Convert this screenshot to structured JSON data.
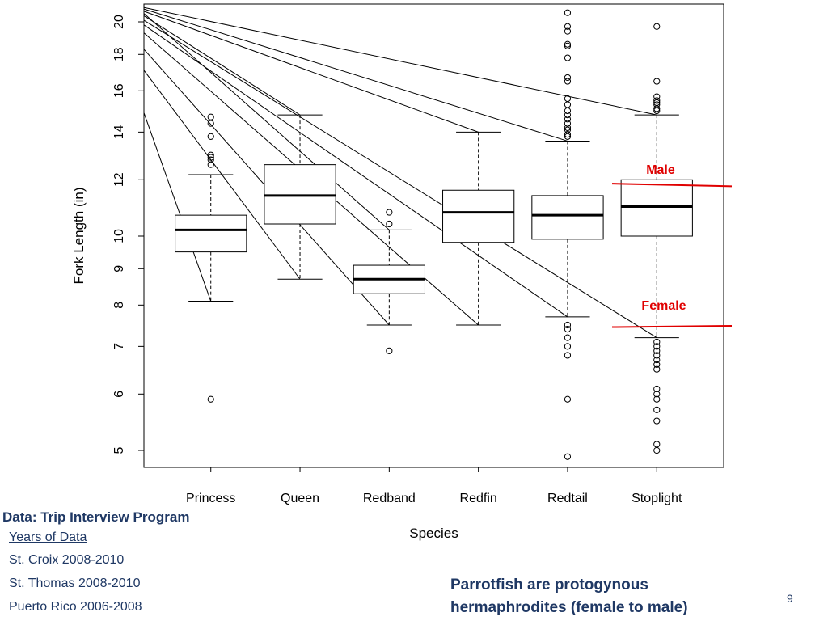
{
  "chart_data": {
    "type": "box",
    "xlabel": "Species",
    "ylabel": "Fork Length (in)",
    "y_scale": "log",
    "ylim": [
      4.6,
      20.6
    ],
    "y_ticks": [
      5,
      6,
      7,
      8,
      9,
      10,
      12,
      14,
      16,
      18,
      20
    ],
    "categories": [
      "Princess",
      "Queen",
      "Redband",
      "Redfin",
      "Redtail",
      "Stoplight"
    ],
    "boxes": [
      {
        "name": "Princess",
        "whisker_low": 8.1,
        "q1": 9.5,
        "median": 10.2,
        "q3": 10.7,
        "whisker_high": 12.2,
        "outliers": [
          5.9,
          12.6,
          12.8,
          12.9,
          13.0,
          13.8,
          14.4,
          14.7
        ]
      },
      {
        "name": "Queen",
        "whisker_low": 8.7,
        "q1": 10.4,
        "median": 11.4,
        "q3": 12.6,
        "whisker_high": 14.8,
        "outliers": []
      },
      {
        "name": "Redband",
        "whisker_low": 7.5,
        "q1": 8.3,
        "median": 8.7,
        "q3": 9.1,
        "whisker_high": 10.2,
        "outliers": [
          6.9,
          10.4,
          10.8
        ]
      },
      {
        "name": "Redfin",
        "whisker_low": 7.5,
        "q1": 9.8,
        "median": 10.8,
        "q3": 11.6,
        "whisker_high": 14.0,
        "outliers": []
      },
      {
        "name": "Redtail",
        "whisker_low": 7.7,
        "q1": 9.9,
        "median": 10.7,
        "q3": 11.4,
        "whisker_high": 13.6,
        "outliers": [
          4.9,
          5.9,
          6.8,
          7.0,
          7.2,
          7.4,
          7.5,
          13.8,
          13.9,
          14.1,
          14.2,
          14.4,
          14.6,
          14.8,
          15.0,
          15.3,
          15.6,
          16.5,
          16.7,
          17.8,
          18.5,
          18.6,
          19.4,
          19.7,
          20.6
        ]
      },
      {
        "name": "Stoplight",
        "whisker_low": 7.2,
        "q1": 10.0,
        "median": 11.0,
        "q3": 12.0,
        "whisker_high": 14.8,
        "outliers": [
          5.0,
          5.1,
          5.5,
          5.7,
          5.9,
          6.0,
          6.1,
          6.5,
          6.6,
          6.7,
          6.8,
          6.9,
          7.0,
          7.1,
          15.0,
          15.1,
          15.3,
          15.4,
          15.5,
          15.7,
          16.5,
          19.7
        ]
      }
    ],
    "annotations": [
      {
        "text": "Male",
        "y": 11.8,
        "color": "#e00000"
      },
      {
        "text": "Female",
        "y": 7.5,
        "color": "#e00000"
      }
    ]
  },
  "source": {
    "title": "Data: Trip Interview Program",
    "years_header": "Years of Data",
    "lines": [
      "St. Croix 2008-2010",
      "St. Thomas 2008-2010",
      "Puerto Rico 2006-2008"
    ]
  },
  "note": "Parrotfish are protogynous hermaphrodites (female to male)",
  "page_number": "9"
}
